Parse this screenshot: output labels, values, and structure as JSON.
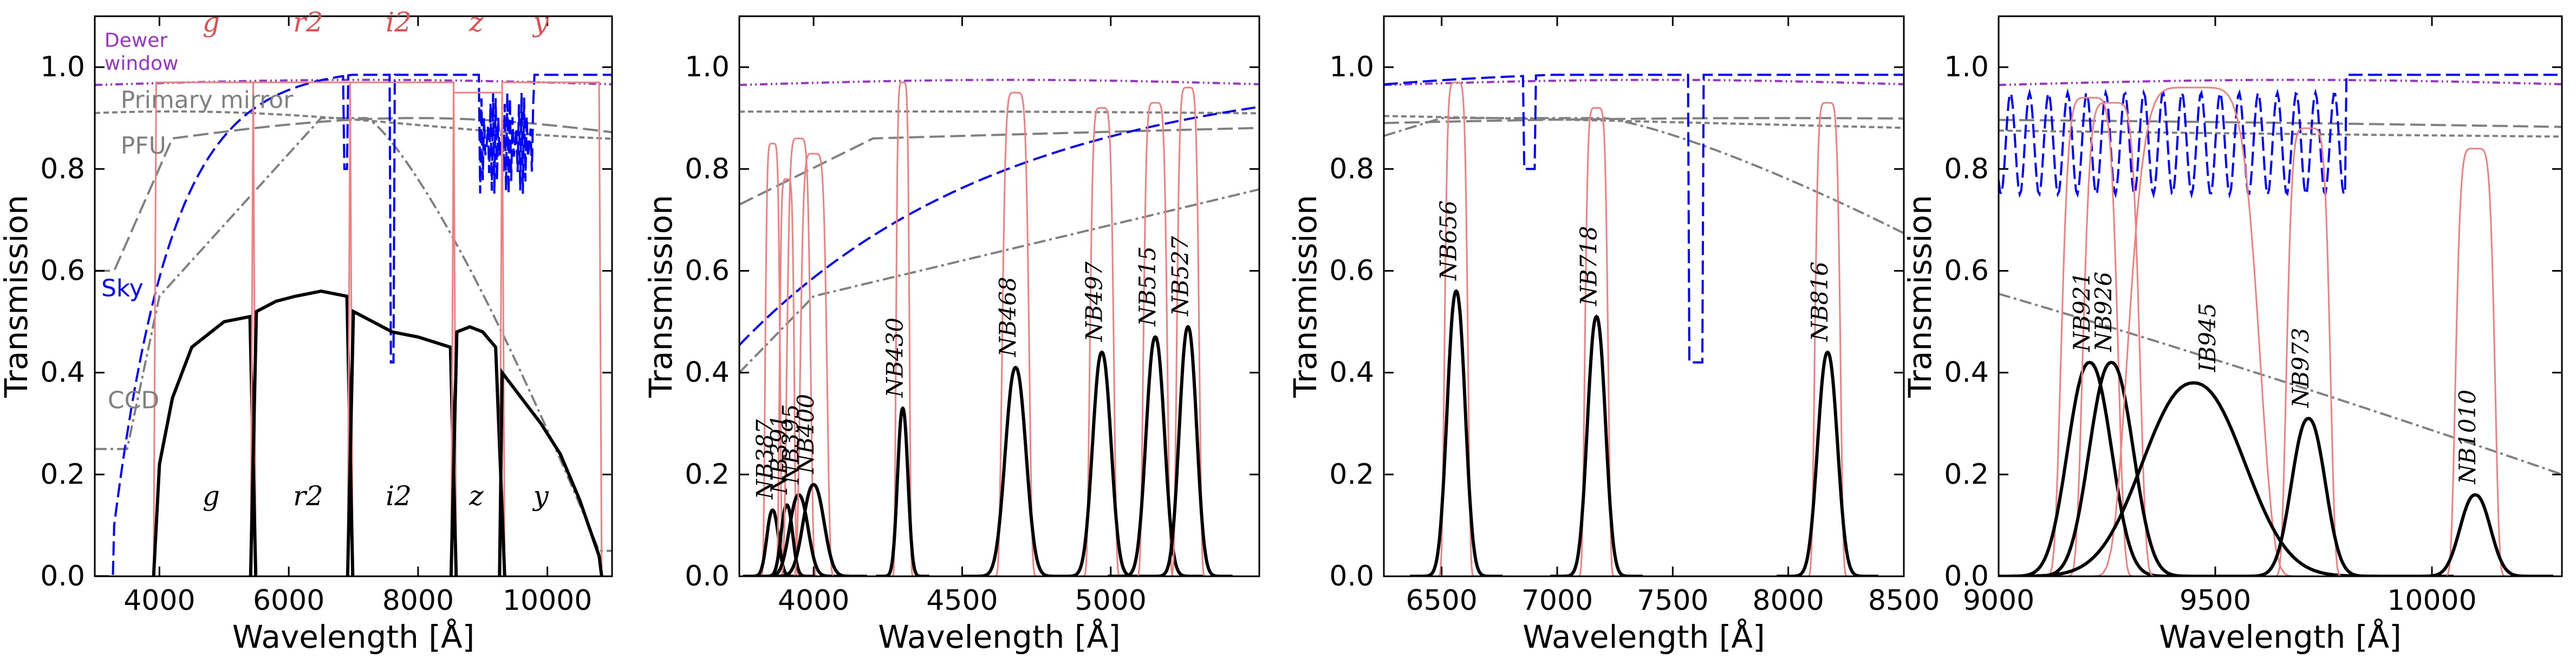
{
  "chart_data": [
    {
      "type": "line",
      "xlabel": "Wavelength [Å]",
      "ylabel": "Transmission",
      "xlim": [
        3000,
        11000
      ],
      "ylim": [
        0,
        1.1
      ],
      "xticks": [
        "4000",
        "6000",
        "8000",
        "10000"
      ],
      "yticks": [
        "0.0",
        "0.2",
        "0.4",
        "0.6",
        "0.8",
        "1.0"
      ],
      "top_labels": [
        {
          "text": "g",
          "x": 4800
        },
        {
          "text": "r2",
          "x": 6300
        },
        {
          "text": "i2",
          "x": 7700
        },
        {
          "text": "z",
          "x": 8900
        },
        {
          "text": "y",
          "x": 9900
        }
      ],
      "bottom_labels": [
        {
          "text": "g",
          "x": 4800
        },
        {
          "text": "r2",
          "x": 6300
        },
        {
          "text": "i2",
          "x": 7700
        },
        {
          "text": "z",
          "x": 8900
        },
        {
          "text": "y",
          "x": 9900
        }
      ],
      "annotations": [
        {
          "text": "Dewer",
          "x": 3150,
          "y": 1.04,
          "color": "#9932cc"
        },
        {
          "text": "window",
          "x": 3150,
          "y": 0.995,
          "color": "#9932cc"
        },
        {
          "text": "Primary mirror",
          "x": 3400,
          "y": 0.92,
          "color": "#808080"
        },
        {
          "text": "PFU",
          "x": 3400,
          "y": 0.83,
          "color": "#808080"
        },
        {
          "text": "Sky",
          "x": 3100,
          "y": 0.55,
          "color": "#0000ff"
        },
        {
          "text": "CCD",
          "x": 3200,
          "y": 0.33,
          "color": "#808080"
        }
      ],
      "filters": [
        {
          "name": "g",
          "lo": 3950,
          "hi": 5450,
          "peak": 0.97,
          "curve": [
            [
              4000,
              0.22
            ],
            [
              4200,
              0.35
            ],
            [
              4500,
              0.45
            ],
            [
              5000,
              0.5
            ],
            [
              5400,
              0.51
            ]
          ]
        },
        {
          "name": "r2",
          "lo": 5450,
          "hi": 6950,
          "peak": 0.97,
          "curve": [
            [
              5500,
              0.52
            ],
            [
              5800,
              0.54
            ],
            [
              6100,
              0.55
            ],
            [
              6500,
              0.56
            ],
            [
              6900,
              0.55
            ]
          ]
        },
        {
          "name": "i2",
          "lo": 6950,
          "hi": 8550,
          "peak": 0.97,
          "curve": [
            [
              7000,
              0.52
            ],
            [
              7300,
              0.5
            ],
            [
              7600,
              0.48
            ],
            [
              8000,
              0.47
            ],
            [
              8500,
              0.45
            ]
          ]
        },
        {
          "name": "z",
          "lo": 8550,
          "hi": 9300,
          "peak": 0.95,
          "curve": [
            [
              8600,
              0.48
            ],
            [
              8800,
              0.49
            ],
            [
              9000,
              0.48
            ],
            [
              9200,
              0.45
            ]
          ]
        },
        {
          "name": "y",
          "lo": 9300,
          "hi": 10800,
          "peak": 0.97,
          "curve": [
            [
              9300,
              0.4
            ],
            [
              9600,
              0.35
            ],
            [
              9900,
              0.3
            ],
            [
              10200,
              0.24
            ],
            [
              10500,
              0.15
            ],
            [
              10800,
              0.04
            ]
          ]
        }
      ]
    },
    {
      "type": "line",
      "xlabel": "Wavelength [Å]",
      "ylabel": "Transmission",
      "xlim": [
        3750,
        5500
      ],
      "ylim": [
        0,
        1.1
      ],
      "xticks": [
        "4000",
        "4500",
        "5000"
      ],
      "yticks": [
        "0.0",
        "0.2",
        "0.4",
        "0.6",
        "0.8",
        "1.0"
      ],
      "filters": [
        {
          "name": "NB387",
          "center": 3862,
          "fwhm": 50,
          "peak": 0.85,
          "resp": 0.13
        },
        {
          "name": "NB391",
          "center": 3910,
          "fwhm": 50,
          "peak": 0.78,
          "resp": 0.14
        },
        {
          "name": "NB395",
          "center": 3950,
          "fwhm": 80,
          "peak": 0.86,
          "resp": 0.16
        },
        {
          "name": "NB400",
          "center": 4000,
          "fwhm": 90,
          "peak": 0.83,
          "resp": 0.18
        },
        {
          "name": "NB430",
          "center": 4300,
          "fwhm": 45,
          "peak": 0.97,
          "resp": 0.33
        },
        {
          "name": "NB468",
          "center": 4680,
          "fwhm": 90,
          "peak": 0.95,
          "resp": 0.41
        },
        {
          "name": "NB497",
          "center": 4970,
          "fwhm": 80,
          "peak": 0.92,
          "resp": 0.44
        },
        {
          "name": "NB515",
          "center": 5150,
          "fwhm": 80,
          "peak": 0.93,
          "resp": 0.47
        },
        {
          "name": "NB527",
          "center": 5260,
          "fwhm": 75,
          "peak": 0.96,
          "resp": 0.49
        }
      ]
    },
    {
      "type": "line",
      "xlabel": "Wavelength [Å]",
      "ylabel": "Transmission",
      "xlim": [
        6250,
        8500
      ],
      "ylim": [
        0,
        1.1
      ],
      "xticks": [
        "6500",
        "7000",
        "7500",
        "8000",
        "8500"
      ],
      "yticks": [
        "0.0",
        "0.2",
        "0.4",
        "0.6",
        "0.8",
        "1.0"
      ],
      "filters": [
        {
          "name": "NB656",
          "center": 6563,
          "fwhm": 100,
          "peak": 0.97,
          "resp": 0.56
        },
        {
          "name": "NB718",
          "center": 7170,
          "fwhm": 100,
          "peak": 0.92,
          "resp": 0.51
        },
        {
          "name": "NB816",
          "center": 8170,
          "fwhm": 110,
          "peak": 0.93,
          "resp": 0.44
        }
      ]
    },
    {
      "type": "line",
      "xlabel": "Wavelength [Å]",
      "ylabel": "Transmission",
      "xlim": [
        9000,
        10300
      ],
      "ylim": [
        0,
        1.1
      ],
      "xticks": [
        "9000",
        "9500",
        "10000"
      ],
      "yticks": [
        "0.0",
        "0.2",
        "0.4",
        "0.6",
        "0.8",
        "1.0"
      ],
      "filters": [
        {
          "name": "NB921",
          "center": 9210,
          "fwhm": 130,
          "peak": 0.94,
          "resp": 0.42
        },
        {
          "name": "NB926",
          "center": 9260,
          "fwhm": 130,
          "peak": 0.93,
          "resp": 0.42
        },
        {
          "name": "IB945",
          "center": 9450,
          "fwhm": 300,
          "peak": 0.96,
          "resp": 0.38
        },
        {
          "name": "NB973",
          "center": 9715,
          "fwhm": 100,
          "peak": 0.88,
          "resp": 0.31
        },
        {
          "name": "NB1010",
          "center": 10100,
          "fwhm": 90,
          "peak": 0.84,
          "resp": 0.16
        }
      ]
    }
  ],
  "colors": {
    "filter": "#f08080",
    "response": "#000000",
    "sky": "#0000ff",
    "dewer": "#9932cc",
    "mirror": "#808080",
    "pfu": "#808080",
    "ccd": "#808080",
    "axes": "#000000"
  }
}
